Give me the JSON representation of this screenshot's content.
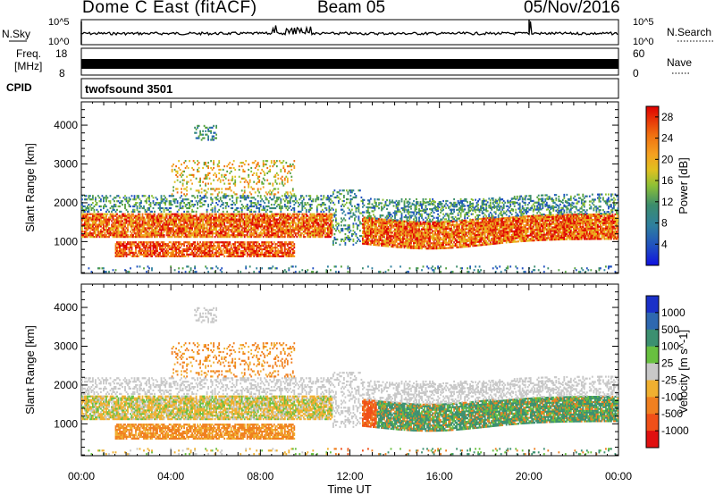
{
  "header": {
    "title": "Dome C East (fitACF)",
    "beam": "Beam 05",
    "date": "05/Nov/2016"
  },
  "panels": {
    "nsky_label": "N.Sky",
    "nsky_ticks": [
      "10^5",
      "10^0"
    ],
    "nsearch_label": "N.Search",
    "nsearch_ticks": [
      "10^5",
      "10^0"
    ],
    "freq_label": "Freq.",
    "freq_unit": "[MHz]",
    "freq_ticks": [
      "18",
      "8"
    ],
    "nave_label": "Nave",
    "nave_ticks": [
      "60",
      "0"
    ],
    "cpid_label": "CPID",
    "cpid_value": "twofsound 3501"
  },
  "chart_data": [
    {
      "type": "heatmap",
      "name": "power",
      "ylabel": "Slant Range [km]",
      "yticks": [
        1000,
        2000,
        3000,
        4000
      ],
      "ylim": [
        180,
        4600
      ],
      "xlabel": "Time UT",
      "xticks": [
        "00:00",
        "04:00",
        "08:00",
        "12:00",
        "16:00",
        "20:00",
        "00:00"
      ],
      "xlim_hours": [
        0,
        24
      ],
      "colorbar": {
        "label": "Power [dB]",
        "ticks": [
          "4",
          "8",
          "12",
          "16",
          "20",
          "24",
          "28"
        ],
        "range": [
          0,
          30
        ],
        "colors": [
          "#1010e0",
          "#2050c0",
          "#2e7f9e",
          "#3c8d6c",
          "#54a040",
          "#8cc036",
          "#e0c020",
          "#f4a020",
          "#f07010",
          "#e03010",
          "#e00000"
        ]
      }
    },
    {
      "type": "heatmap",
      "name": "velocity",
      "ylabel": "Slant Range [km]",
      "yticks": [
        1000,
        2000,
        3000,
        4000
      ],
      "ylim": [
        180,
        4600
      ],
      "xlabel": "Time UT",
      "xticks": [
        "00:00",
        "04:00",
        "08:00",
        "12:00",
        "16:00",
        "20:00",
        "00:00"
      ],
      "xlim_hours": [
        0,
        24
      ],
      "colorbar": {
        "label": "Velocity [m s^-1]",
        "ticks": [
          "1000",
          "500",
          "100",
          "25",
          "-25",
          "-100",
          "-500",
          "-1000"
        ],
        "colors": [
          "#1a30c8",
          "#2e68b0",
          "#3c9070",
          "#68c040",
          "#c8c8c8",
          "#f0b030",
          "#f08020",
          "#f05018",
          "#e01010"
        ]
      }
    }
  ]
}
